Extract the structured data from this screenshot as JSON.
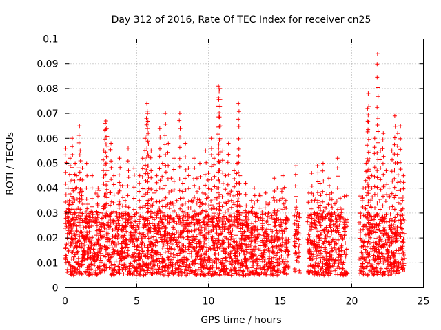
{
  "chart_data": {
    "type": "scatter",
    "title": "Day 312 of 2016, Rate Of TEC Index for receiver cn25",
    "xlabel": "GPS time / hours",
    "ylabel": "ROTI / TECUs",
    "xlim": [
      0,
      25
    ],
    "ylim": [
      0,
      0.1
    ],
    "grid": true,
    "marker": "+",
    "color": "#ff0000",
    "xticks": [
      0,
      5,
      10,
      15,
      20,
      25
    ],
    "xtick_labels": [
      "0",
      "5",
      "10",
      "15",
      "20",
      "25"
    ],
    "yticks": [
      0,
      0.01,
      0.02,
      0.03,
      0.04,
      0.05,
      0.06,
      0.07,
      0.08,
      0.09,
      0.1
    ],
    "ytick_labels": [
      "0",
      "0.01",
      "0.02",
      "0.03",
      "0.04",
      "0.05",
      "0.06",
      "0.07",
      "0.08",
      "0.09",
      "0.1"
    ],
    "gaps_hours": [
      [
        15.6,
        16.0
      ],
      [
        16.4,
        16.9
      ],
      [
        19.7,
        20.5
      ]
    ],
    "series": [
      {
        "name": "cn25",
        "x": [
          0.0,
          0.05,
          0.1,
          0.15,
          0.2,
          0.25,
          0.3,
          0.35,
          0.4,
          0.5,
          0.6,
          0.7,
          0.8,
          0.9,
          1.0,
          1.05,
          1.1,
          1.2,
          1.3,
          1.5,
          1.7,
          1.9,
          2.1,
          2.3,
          2.5,
          2.7,
          2.8,
          2.85,
          2.9,
          3.0,
          3.2,
          3.4,
          3.6,
          3.8,
          4.0,
          4.2,
          4.4,
          4.6,
          4.8,
          5.0,
          5.2,
          5.4,
          5.6,
          5.7,
          5.75,
          5.8,
          6.0,
          6.2,
          6.4,
          6.6,
          6.8,
          7.0,
          7.2,
          7.4,
          7.6,
          7.8,
          8.0,
          8.2,
          8.4,
          8.6,
          8.8,
          9.0,
          9.2,
          9.4,
          9.6,
          9.8,
          10.0,
          10.2,
          10.4,
          10.6,
          10.7,
          10.75,
          10.8,
          11.0,
          11.2,
          11.4,
          11.6,
          11.8,
          12.0,
          12.1,
          12.2,
          12.4,
          12.6,
          12.8,
          13.0,
          13.2,
          13.4,
          13.6,
          13.8,
          14.0,
          14.2,
          14.4,
          14.6,
          14.8,
          15.0,
          15.2,
          15.4,
          16.1,
          16.2,
          16.3,
          17.0,
          17.2,
          17.4,
          17.6,
          17.8,
          18.0,
          18.2,
          18.4,
          18.6,
          18.8,
          19.0,
          19.2,
          19.4,
          20.6,
          20.8,
          21.0,
          21.1,
          21.15,
          21.2,
          21.4,
          21.6,
          21.8,
          22.0,
          22.2,
          22.4,
          22.6,
          22.8,
          23.0,
          23.2,
          23.4,
          23.6
        ],
        "y": [
          0.012,
          0.056,
          0.03,
          0.02,
          0.04,
          0.015,
          0.035,
          0.052,
          0.018,
          0.06,
          0.025,
          0.05,
          0.045,
          0.032,
          0.065,
          0.055,
          0.03,
          0.048,
          0.015,
          0.05,
          0.02,
          0.045,
          0.028,
          0.04,
          0.03,
          0.055,
          0.066,
          0.067,
          0.064,
          0.025,
          0.058,
          0.045,
          0.03,
          0.052,
          0.041,
          0.035,
          0.056,
          0.02,
          0.048,
          0.03,
          0.045,
          0.052,
          0.06,
          0.074,
          0.07,
          0.062,
          0.055,
          0.038,
          0.045,
          0.064,
          0.05,
          0.07,
          0.058,
          0.044,
          0.052,
          0.035,
          0.07,
          0.042,
          0.058,
          0.048,
          0.035,
          0.052,
          0.044,
          0.05,
          0.038,
          0.055,
          0.046,
          0.06,
          0.052,
          0.04,
          0.081,
          0.079,
          0.08,
          0.055,
          0.045,
          0.058,
          0.035,
          0.047,
          0.05,
          0.074,
          0.045,
          0.03,
          0.042,
          0.025,
          0.035,
          0.04,
          0.02,
          0.032,
          0.025,
          0.038,
          0.03,
          0.028,
          0.044,
          0.04,
          0.032,
          0.045,
          0.035,
          0.049,
          0.03,
          0.025,
          0.038,
          0.046,
          0.035,
          0.049,
          0.042,
          0.05,
          0.032,
          0.044,
          0.038,
          0.03,
          0.052,
          0.036,
          0.028,
          0.03,
          0.04,
          0.05,
          0.072,
          0.078,
          0.055,
          0.045,
          0.06,
          0.094,
          0.055,
          0.062,
          0.047,
          0.04,
          0.055,
          0.069,
          0.062,
          0.065,
          0.045
        ]
      }
    ],
    "baseline_band": [
      0.005,
      0.03
    ]
  }
}
